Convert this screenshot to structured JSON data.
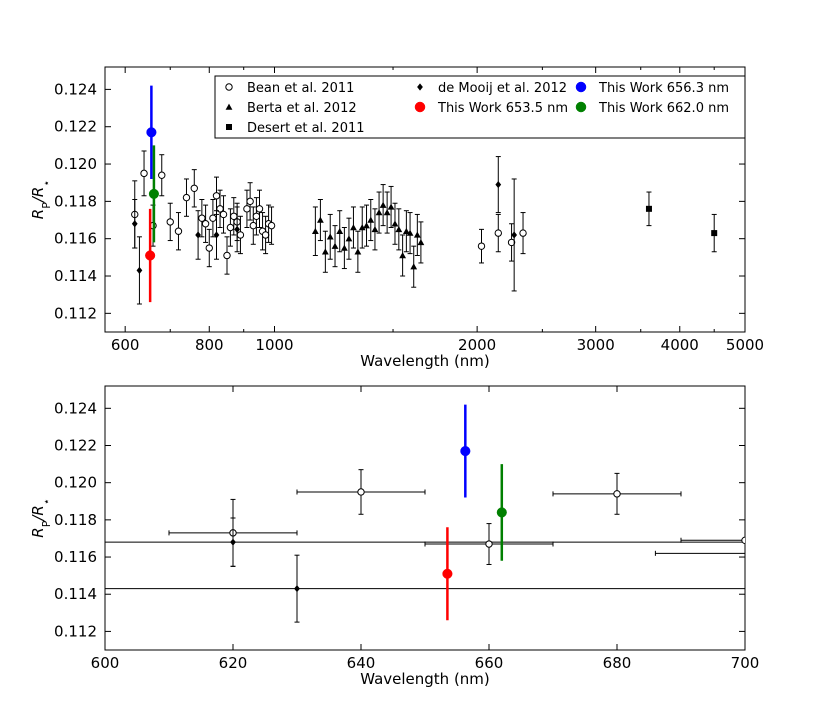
{
  "chart_data": [
    {
      "type": "scatter",
      "panel": "top",
      "xlabel": "Wavelength (nm)",
      "ylabel": "R_P/R_*",
      "xscale": "log",
      "xlim": [
        560,
        5000
      ],
      "ylim": [
        0.111,
        0.1252
      ],
      "xticks": [
        600,
        800,
        1000,
        2000,
        3000,
        4000,
        5000
      ],
      "xtick_labels": [
        "600",
        "800",
        "1000",
        "2000",
        "3000",
        "4000",
        "5000"
      ],
      "yticks": [
        0.112,
        0.114,
        0.116,
        0.118,
        0.12,
        0.122,
        0.124
      ],
      "ytick_labels": [
        "0.112",
        "0.114",
        "0.116",
        "0.118",
        "0.120",
        "0.122",
        "0.124"
      ],
      "grid": false,
      "legend": {
        "placement": "top-right",
        "entries": [
          {
            "label": "Bean et al. 2011",
            "marker": "open-circle",
            "color": "#000000"
          },
          {
            "label": "de Mooij et al. 2012",
            "marker": "diamond",
            "color": "#000000"
          },
          {
            "label": "This Work 656.3 nm",
            "marker": "circle",
            "color": "#0000ff"
          },
          {
            "label": "Berta et al. 2012",
            "marker": "triangle",
            "color": "#000000"
          },
          {
            "label": "This Work 653.5 nm",
            "marker": "circle",
            "color": "#ff0000"
          },
          {
            "label": "This Work 662.0 nm",
            "marker": "circle",
            "color": "#008000"
          },
          {
            "label": "Desert et al. 2011",
            "marker": "square",
            "color": "#000000"
          }
        ]
      },
      "series": [
        {
          "name": "Bean et al. 2011",
          "marker": "open-circle",
          "color": "#000000",
          "points": [
            {
              "x": 620,
              "y": 0.1173,
              "err": 0.0018
            },
            {
              "x": 640,
              "y": 0.1195,
              "err": 0.0012
            },
            {
              "x": 660,
              "y": 0.1167,
              "err": 0.0011
            },
            {
              "x": 680,
              "y": 0.1194,
              "err": 0.0011
            },
            {
              "x": 700,
              "y": 0.1169,
              "err": 0.001
            },
            {
              "x": 720,
              "y": 0.1164,
              "err": 0.001
            },
            {
              "x": 740,
              "y": 0.1182,
              "err": 0.001
            },
            {
              "x": 760,
              "y": 0.1187,
              "err": 0.001
            },
            {
              "x": 780,
              "y": 0.1171,
              "err": 0.001
            },
            {
              "x": 790,
              "y": 0.1168,
              "err": 0.001
            },
            {
              "x": 800,
              "y": 0.1155,
              "err": 0.001
            },
            {
              "x": 810,
              "y": 0.1171,
              "err": 0.001
            },
            {
              "x": 820,
              "y": 0.1183,
              "err": 0.001
            },
            {
              "x": 830,
              "y": 0.1176,
              "err": 0.001
            },
            {
              "x": 840,
              "y": 0.1173,
              "err": 0.001
            },
            {
              "x": 850,
              "y": 0.1151,
              "err": 0.001
            },
            {
              "x": 860,
              "y": 0.1166,
              "err": 0.001
            },
            {
              "x": 870,
              "y": 0.1172,
              "err": 0.001
            },
            {
              "x": 880,
              "y": 0.1169,
              "err": 0.001
            },
            {
              "x": 890,
              "y": 0.1162,
              "err": 0.001
            },
            {
              "x": 910,
              "y": 0.1176,
              "err": 0.001
            },
            {
              "x": 920,
              "y": 0.118,
              "err": 0.001
            },
            {
              "x": 930,
              "y": 0.1167,
              "err": 0.001
            },
            {
              "x": 940,
              "y": 0.1172,
              "err": 0.001
            },
            {
              "x": 950,
              "y": 0.1176,
              "err": 0.001
            },
            {
              "x": 960,
              "y": 0.1164,
              "err": 0.001
            },
            {
              "x": 970,
              "y": 0.1162,
              "err": 0.001
            },
            {
              "x": 980,
              "y": 0.1168,
              "err": 0.001
            },
            {
              "x": 990,
              "y": 0.1167,
              "err": 0.001
            },
            {
              "x": 2030,
              "y": 0.1156,
              "err": 0.0009
            },
            {
              "x": 2150,
              "y": 0.1163,
              "err": 0.001
            },
            {
              "x": 2250,
              "y": 0.1158,
              "err": 0.001
            },
            {
              "x": 2340,
              "y": 0.1163,
              "err": 0.0011
            }
          ]
        },
        {
          "name": "de Mooij et al. 2012",
          "marker": "diamond",
          "color": "#000000",
          "points": [
            {
              "x": 620,
              "y": 0.1168,
              "err": 0.0013
            },
            {
              "x": 630,
              "y": 0.1143,
              "err": 0.0018
            },
            {
              "x": 770,
              "y": 0.1162,
              "err": 0.0013
            },
            {
              "x": 820,
              "y": 0.1162,
              "err": 0.0013
            },
            {
              "x": 880,
              "y": 0.1165,
              "err": 0.0012
            },
            {
              "x": 2150,
              "y": 0.1189,
              "err": 0.0015
            },
            {
              "x": 2270,
              "y": 0.1162,
              "err": 0.003
            }
          ]
        },
        {
          "name": "Berta et al. 2012",
          "marker": "triangle",
          "color": "#000000",
          "points": [
            {
              "x": 1150,
              "y": 0.1164,
              "err": 0.0013
            },
            {
              "x": 1170,
              "y": 0.117,
              "err": 0.0011
            },
            {
              "x": 1190,
              "y": 0.1153,
              "err": 0.0011
            },
            {
              "x": 1210,
              "y": 0.1161,
              "err": 0.0012
            },
            {
              "x": 1230,
              "y": 0.1156,
              "err": 0.0011
            },
            {
              "x": 1250,
              "y": 0.1164,
              "err": 0.0011
            },
            {
              "x": 1270,
              "y": 0.1155,
              "err": 0.0011
            },
            {
              "x": 1290,
              "y": 0.116,
              "err": 0.0011
            },
            {
              "x": 1310,
              "y": 0.1166,
              "err": 0.0011
            },
            {
              "x": 1330,
              "y": 0.1153,
              "err": 0.0011
            },
            {
              "x": 1350,
              "y": 0.1166,
              "err": 0.0011
            },
            {
              "x": 1370,
              "y": 0.1167,
              "err": 0.0011
            },
            {
              "x": 1390,
              "y": 0.117,
              "err": 0.0011
            },
            {
              "x": 1410,
              "y": 0.1165,
              "err": 0.0011
            },
            {
              "x": 1430,
              "y": 0.1174,
              "err": 0.0011
            },
            {
              "x": 1450,
              "y": 0.1178,
              "err": 0.0011
            },
            {
              "x": 1470,
              "y": 0.1174,
              "err": 0.0011
            },
            {
              "x": 1490,
              "y": 0.1177,
              "err": 0.0011
            },
            {
              "x": 1510,
              "y": 0.1168,
              "err": 0.0011
            },
            {
              "x": 1530,
              "y": 0.1165,
              "err": 0.0011
            },
            {
              "x": 1550,
              "y": 0.1151,
              "err": 0.0011
            },
            {
              "x": 1570,
              "y": 0.1164,
              "err": 0.0011
            },
            {
              "x": 1590,
              "y": 0.1163,
              "err": 0.0011
            },
            {
              "x": 1610,
              "y": 0.1145,
              "err": 0.0011
            },
            {
              "x": 1630,
              "y": 0.1162,
              "err": 0.0011
            },
            {
              "x": 1650,
              "y": 0.1158,
              "err": 0.0011
            }
          ]
        },
        {
          "name": "Desert et al. 2011",
          "marker": "square",
          "color": "#000000",
          "points": [
            {
              "x": 3600,
              "y": 0.1176,
              "err": 0.0009
            },
            {
              "x": 4500,
              "y": 0.1163,
              "err": 0.001
            }
          ]
        },
        {
          "name": "This Work 653.5 nm",
          "marker": "circle",
          "color": "#ff0000",
          "points": [
            {
              "x": 653.5,
              "y": 0.1151,
              "err": 0.0025
            }
          ]
        },
        {
          "name": "This Work 656.3 nm",
          "marker": "circle",
          "color": "#0000ff",
          "points": [
            {
              "x": 656.3,
              "y": 0.1217,
              "err": 0.0025
            }
          ]
        },
        {
          "name": "This Work 662.0 nm",
          "marker": "circle",
          "color": "#008000",
          "points": [
            {
              "x": 662.0,
              "y": 0.1184,
              "err": 0.0026
            }
          ]
        }
      ]
    },
    {
      "type": "scatter",
      "panel": "bottom",
      "xlabel": "Wavelength (nm)",
      "ylabel": "R_P/R_*",
      "xlim": [
        600,
        700
      ],
      "ylim": [
        0.111,
        0.1252
      ],
      "xticks": [
        600,
        620,
        640,
        660,
        680,
        700
      ],
      "xtick_labels": [
        "600",
        "620",
        "640",
        "660",
        "680",
        "700"
      ],
      "yticks": [
        0.112,
        0.114,
        0.116,
        0.118,
        0.12,
        0.122,
        0.124
      ],
      "ytick_labels": [
        "0.112",
        "0.114",
        "0.116",
        "0.118",
        "0.120",
        "0.122",
        "0.124"
      ],
      "grid": false,
      "series": [
        {
          "name": "Bean et al. 2011",
          "marker": "open-circle",
          "color": "#000000",
          "points": [
            {
              "x": 620,
              "y": 0.1173,
              "xerr": 10,
              "err": 0.0018
            },
            {
              "x": 640,
              "y": 0.1195,
              "xerr": 10,
              "err": 0.0012
            },
            {
              "x": 660,
              "y": 0.1167,
              "xerr": 10,
              "err": 0.0011
            },
            {
              "x": 680,
              "y": 0.1194,
              "xerr": 10,
              "err": 0.0011
            },
            {
              "x": 700,
              "y": 0.1169,
              "xerr": 10,
              "err": 0
            }
          ]
        },
        {
          "name": "de Mooij et al. 2012",
          "marker": "diamond",
          "color": "#000000",
          "points": [
            {
              "x": 620,
              "y": 0.1168,
              "err": 0.0013,
              "band": 0.1168
            },
            {
              "x": 630,
              "y": 0.1143,
              "err": 0.0018,
              "band": 0.1143
            }
          ]
        },
        {
          "name": "Berta et al. 2012",
          "marker": "none",
          "color": "#000000",
          "points": [
            {
              "x": 700,
              "y": 0.1162,
              "xerr": 14,
              "err": 0
            }
          ]
        },
        {
          "name": "This Work 653.5 nm",
          "marker": "circle",
          "color": "#ff0000",
          "points": [
            {
              "x": 653.5,
              "y": 0.1151,
              "err": 0.0025
            }
          ]
        },
        {
          "name": "This Work 656.3 nm",
          "marker": "circle",
          "color": "#0000ff",
          "points": [
            {
              "x": 656.3,
              "y": 0.1217,
              "err": 0.0025
            }
          ]
        },
        {
          "name": "This Work 662.0 nm",
          "marker": "circle",
          "color": "#008000",
          "points": [
            {
              "x": 662.0,
              "y": 0.1184,
              "err": 0.0026
            }
          ]
        }
      ]
    }
  ]
}
